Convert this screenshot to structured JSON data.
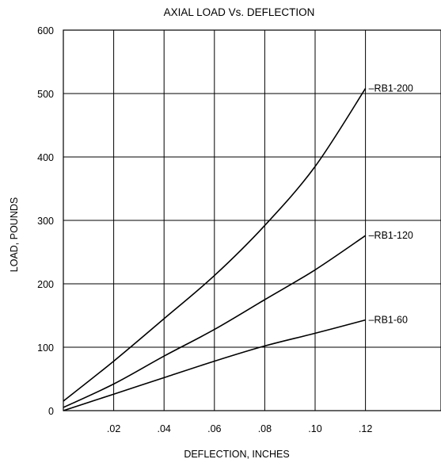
{
  "chart_data": {
    "type": "line",
    "title": "AXIAL LOAD Vs. DEFLECTION",
    "xlabel": "DEFLECTION, INCHES",
    "ylabel": "LOAD, POUNDS",
    "xlim": [
      0,
      0.15
    ],
    "ylim": [
      0,
      600
    ],
    "grid": true,
    "x_ticks": [
      {
        "value": 0.02,
        "label": ".02"
      },
      {
        "value": 0.04,
        "label": ".04"
      },
      {
        "value": 0.06,
        "label": ".06"
      },
      {
        "value": 0.08,
        "label": ".08"
      },
      {
        "value": 0.1,
        "label": ".10"
      },
      {
        "value": 0.12,
        "label": ".12"
      }
    ],
    "y_ticks": [
      {
        "value": 0,
        "label": "0"
      },
      {
        "value": 100,
        "label": "100"
      },
      {
        "value": 200,
        "label": "200"
      },
      {
        "value": 300,
        "label": "300"
      },
      {
        "value": 400,
        "label": "400"
      },
      {
        "value": 500,
        "label": "500"
      },
      {
        "value": 600,
        "label": "600"
      }
    ],
    "series": [
      {
        "name": "–RB1-200",
        "x": [
          0,
          0.02,
          0.04,
          0.06,
          0.08,
          0.1,
          0.12
        ],
        "y": [
          15,
          78,
          145,
          213,
          292,
          385,
          508
        ]
      },
      {
        "name": "–RB1-120",
        "x": [
          0,
          0.02,
          0.04,
          0.06,
          0.08,
          0.1,
          0.12
        ],
        "y": [
          5,
          42,
          86,
          128,
          175,
          222,
          276
        ]
      },
      {
        "name": "–RB1-60",
        "x": [
          0,
          0.02,
          0.04,
          0.06,
          0.08,
          0.1,
          0.12
        ],
        "y": [
          0,
          26,
          52,
          78,
          102,
          122,
          143
        ]
      }
    ]
  }
}
